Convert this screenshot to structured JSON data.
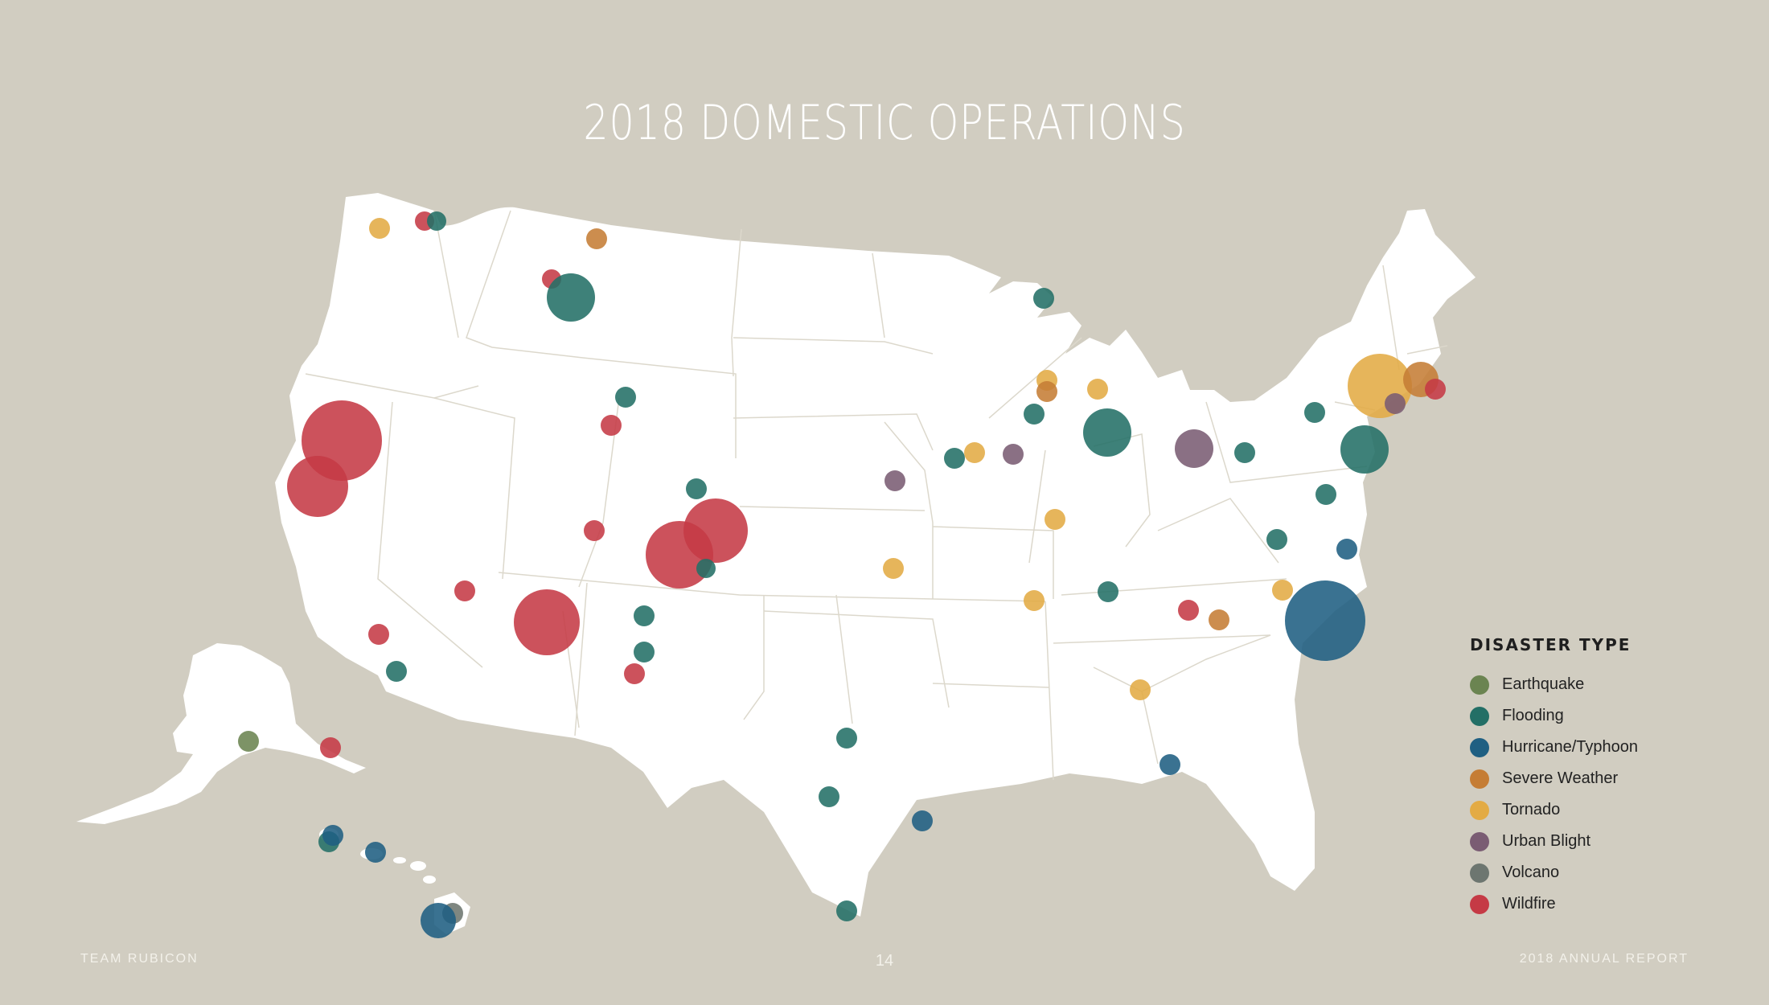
{
  "title": "2018 DOMESTIC OPERATIONS",
  "footer": {
    "left": "TEAM RUBICON",
    "page_number": "14",
    "right": "2018 ANNUAL REPORT"
  },
  "legend": {
    "title": "DISASTER TYPE",
    "items": [
      {
        "key": "earthquake",
        "label": "Earthquake",
        "color": "#6b8451"
      },
      {
        "key": "flooding",
        "label": "Flooding",
        "color": "#236f66"
      },
      {
        "key": "hurricane",
        "label": "Hurricane/Typhoon",
        "color": "#1f5f82"
      },
      {
        "key": "severe",
        "label": "Severe Weather",
        "color": "#c57d35"
      },
      {
        "key": "tornado",
        "label": "Tornado",
        "color": "#e3ab44"
      },
      {
        "key": "urban",
        "label": "Urban Blight",
        "color": "#7a5c73"
      },
      {
        "key": "volcano",
        "label": "Volcano",
        "color": "#6d7670"
      },
      {
        "key": "wildfire",
        "label": "Wildfire",
        "color": "#c53a45"
      }
    ]
  },
  "map": {
    "land_color": "#ffffff",
    "border_color": "#dcd8cc"
  }
}
